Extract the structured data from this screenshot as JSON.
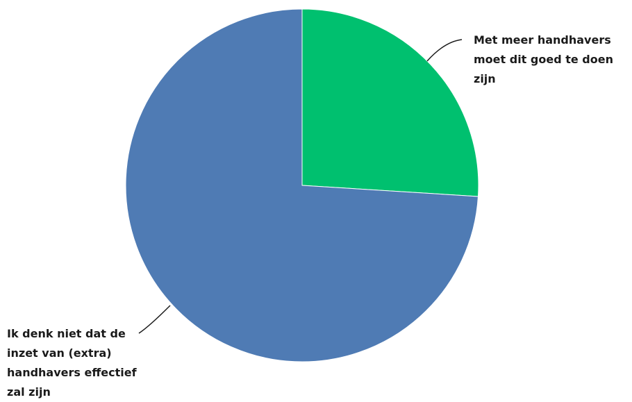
{
  "chart_data": {
    "type": "pie",
    "categories": [
      "Met meer handhavers moet dit goed te doen zijn",
      "Ik denk niet dat de inzet van (extra) handhavers effectief zal zijn"
    ],
    "values": [
      26,
      74
    ],
    "colors": [
      "#00c06f",
      "#4f7bb4"
    ]
  }
}
